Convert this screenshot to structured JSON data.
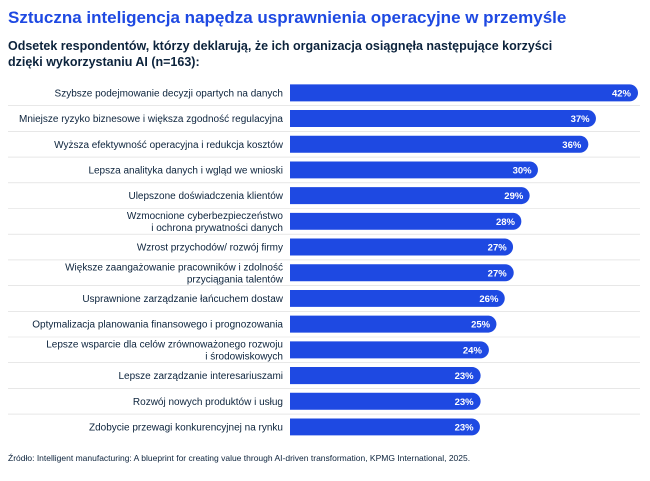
{
  "title": "Sztuczna inteligencja napędza usprawnienia operacyjne w przemyśle",
  "subtitle": "Odsetek respondentów, którzy deklarują, że ich organizacja osiągnęła następujące korzyści dzięki wykorzystaniu AI (n=163):",
  "source": "Źródło: Intelligent manufacturing: A blueprint for creating value through AI-driven transformation, KPMG International, 2025.",
  "colors": {
    "title": "#1e49e2",
    "bar": "#1e49e2",
    "bar_label": "#ffffff",
    "text": "#0c233c",
    "separator": "#d9d9d9"
  },
  "chart_data": {
    "type": "bar",
    "orientation": "horizontal",
    "unit": "%",
    "categories": [
      "Szybsze podejmowanie decyzji opartych na danych",
      "Mniejsze ryzyko biznesowe i większa zgodność regulacyjna",
      "Wyższa efektywność operacyjna i redukcja kosztów",
      "Lepsza analityka danych i wgląd we wnioski",
      "Ulepszone doświadczenia klientów",
      "Wzmocnione cyberbezpieczeństwo i ochrona prywatności danych",
      "Wzrost przychodów/ rozwój firmy",
      "Większe zaangażowanie pracowników i zdolność przyciągania talentów",
      "Usprawnione zarządzanie łańcuchem dostaw",
      "Optymalizacja planowania finansowego i prognozowania",
      "Lepsze wsparcie dla celów zrównoważonego rozwoju i środowiskowych",
      "Lepsze zarządzanie interesariuszami",
      "Rozwój nowych produktów i usług",
      "Zdobycie przewagi konkurencyjnej na rynku"
    ],
    "category_lines": [
      [
        "Szybsze podejmowanie decyzji opartych na danych"
      ],
      [
        "Mniejsze ryzyko biznesowe i większa zgodność regulacyjna"
      ],
      [
        "Wyższa efektywność operacyjna i redukcja kosztów"
      ],
      [
        "Lepsza analityka danych i wgląd we wnioski"
      ],
      [
        "Ulepszone doświadczenia klientów"
      ],
      [
        "Wzmocnione cyberbezpieczeństwo",
        "i ochrona prywatności danych"
      ],
      [
        "Wzrost przychodów/ rozwój firmy"
      ],
      [
        "Większe zaangażowanie pracowników i zdolność",
        "przyciągania talentów"
      ],
      [
        "Usprawnione zarządzanie łańcuchem dostaw"
      ],
      [
        "Optymalizacja planowania finansowego i prognozowania"
      ],
      [
        "Lepsze wsparcie dla celów zrównoważonego rozwoju",
        "i środowiskowych"
      ],
      [
        "Lepsze zarządzanie interesariuszami"
      ],
      [
        "Rozwój nowych produktów i usług"
      ],
      [
        "Zdobycie przewagi konkurencyjnej na rynku"
      ]
    ],
    "values": [
      42,
      37,
      36,
      30,
      29,
      28,
      27,
      27,
      26,
      25,
      24,
      23,
      23,
      23
    ],
    "value_labels": [
      "42%",
      "37%",
      "36%",
      "30%",
      "29%",
      "28%",
      "27%",
      "27%",
      "26%",
      "25%",
      "24%",
      "23%",
      "23%",
      "23%"
    ],
    "xlim": [
      0,
      42
    ],
    "grid": false,
    "legend": "none"
  }
}
